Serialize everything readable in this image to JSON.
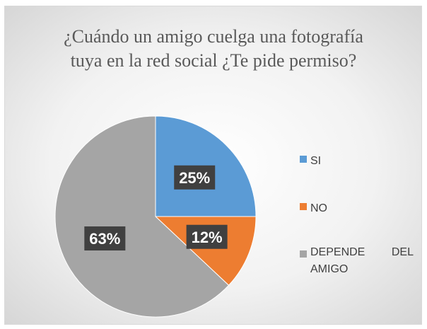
{
  "chart_data": {
    "type": "pie",
    "title": "¿Cuándo un amigo cuelga una fotografía tuya en la red social ¿Te pide permiso?",
    "categories": [
      "SI",
      "NO",
      "DEPENDE DEL AMIGO"
    ],
    "values": [
      25,
      12,
      63
    ],
    "data_labels": [
      "25%",
      "12%",
      "63%"
    ],
    "colors": [
      "#5b9bd5",
      "#ed7d31",
      "#a5a5a5"
    ],
    "legend_position": "right",
    "start_angle_deg": 0,
    "direction": "clockwise"
  }
}
